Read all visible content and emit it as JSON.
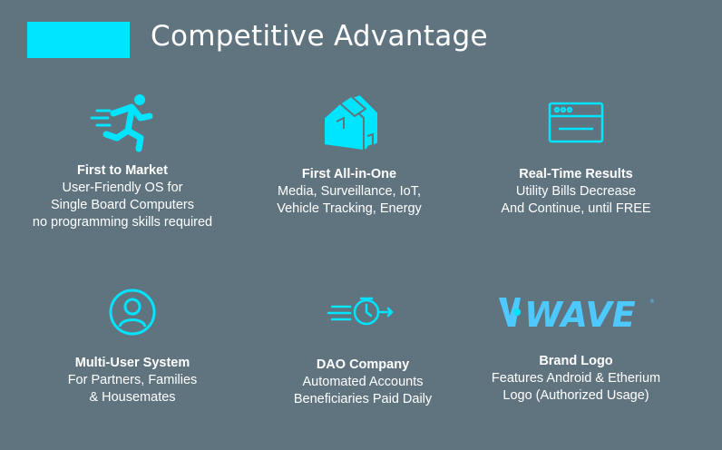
{
  "slide": {
    "title": "Competitive Advantage",
    "accent_color": "#00e5ff",
    "background_color": "#607480"
  },
  "cards": [
    {
      "icon": "runner-icon",
      "heading": "First to Market",
      "lines": [
        "User-Friendly OS for",
        "Single Board Computers",
        "no programming skills required"
      ]
    },
    {
      "icon": "house-icon",
      "heading": "First All-in-One",
      "lines": [
        "Media, Surveillance, IoT,",
        "Vehicle Tracking, Energy"
      ]
    },
    {
      "icon": "browser-window-icon",
      "heading": "Real-Time Results",
      "lines": [
        "Utility Bills Decrease",
        "And Continue, until FREE"
      ]
    },
    {
      "icon": "user-profile-icon",
      "heading": "Multi-User System",
      "lines": [
        "For Partners, Families",
        "& Housemates"
      ]
    },
    {
      "icon": "fast-clock-icon",
      "heading": "DAO Company",
      "lines": [
        "Automated Accounts",
        "Beneficiaries Paid Daily"
      ]
    },
    {
      "icon": "wave-brand-logo",
      "logo_text": "WAVE",
      "heading": "Brand Logo",
      "lines": [
        "Features Android & Etherium",
        "Logo (Authorized Usage)"
      ]
    }
  ]
}
